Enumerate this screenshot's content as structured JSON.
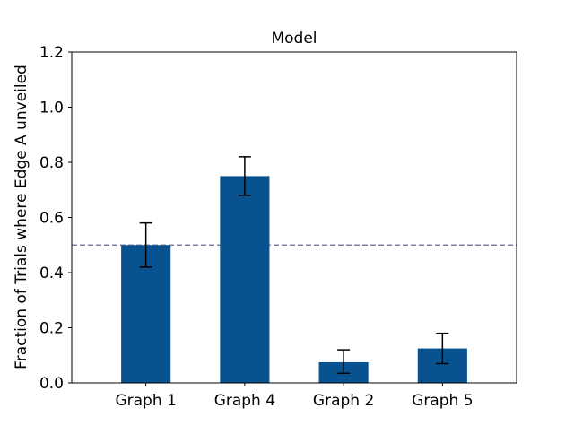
{
  "chart_data": {
    "type": "bar",
    "title": "Model",
    "xlabel": "",
    "ylabel": "Fraction of Trials where Edge A unveiled",
    "categories": [
      "Graph 1",
      "Graph 4",
      "Graph 2",
      "Graph 5"
    ],
    "values": [
      0.5,
      0.75,
      0.075,
      0.125
    ],
    "error_low": [
      0.42,
      0.68,
      0.035,
      0.07
    ],
    "error_high": [
      0.58,
      0.82,
      0.12,
      0.18
    ],
    "reference_line": 0.5,
    "ylim": [
      0,
      1.2
    ],
    "yticks": [
      "0.0",
      "0.2",
      "0.4",
      "0.6",
      "0.8",
      "1.0",
      "1.2"
    ],
    "grid": false,
    "colors": {
      "bar": "#08528f",
      "reference_line": "#7c7fa1",
      "error_bar": "#000000"
    }
  }
}
